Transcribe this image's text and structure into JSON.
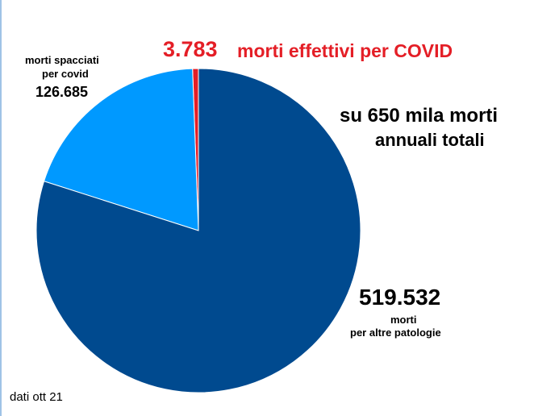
{
  "chart_data": {
    "type": "pie",
    "slices": [
      {
        "label": "morti effettivi per COVID",
        "value": 3783,
        "value_label": "3.783",
        "color": "#e41e26"
      },
      {
        "label": "morti spacciati per covid",
        "value": 126685,
        "value_label": "126.685",
        "color": "#0099ff"
      },
      {
        "label": "morti per altre patologie",
        "value": 519532,
        "value_label": "519.532",
        "color": "#004a8f"
      }
    ],
    "annotations": {
      "covid_effective_value": "3.783",
      "covid_effective_label": "morti effettivi per COVID",
      "covid_attributed_label_line1": "morti spacciati",
      "covid_attributed_label_line2": "per covid",
      "covid_attributed_value": "126.685",
      "total_line1": "su 650 mila morti",
      "total_line2": "annuali totali",
      "other_value": "519.532",
      "other_label_line1": "morti",
      "other_label_line2": "per altre patologie"
    },
    "source_note": "dati ott 21"
  }
}
